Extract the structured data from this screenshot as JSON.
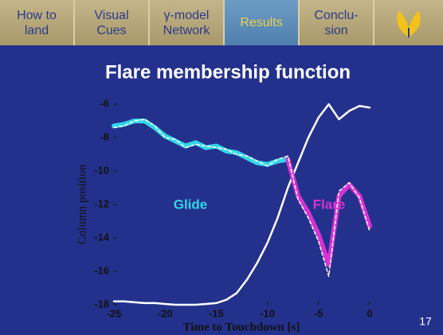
{
  "nav": {
    "tabs": [
      {
        "label": "How to land",
        "active": false
      },
      {
        "label": "Visual Cues",
        "active": false
      },
      {
        "label": "γ-model Network",
        "active": false
      },
      {
        "label": "Results",
        "active": true
      },
      {
        "label": "Conclu- sion",
        "active": false
      }
    ]
  },
  "slide_number": "17",
  "chart_data": {
    "type": "line",
    "title": "Flare membership function",
    "x_label": "Time to Touchdown [s]",
    "y_label": "Column position",
    "x": [
      -25,
      -24,
      -23,
      -22,
      -21,
      -20,
      -19,
      -18,
      -17,
      -16,
      -15,
      -14,
      -13,
      -12,
      -11,
      -10,
      -9,
      -8,
      -7,
      -6,
      -5,
      -4,
      -3,
      -2,
      -1,
      0
    ],
    "series": [
      {
        "color": "#ffffff",
        "width": 2.5,
        "style": "solid",
        "values": [
          -17.8,
          -17.8,
          -17.85,
          -17.9,
          -17.9,
          -17.95,
          -18,
          -18,
          -18,
          -17.95,
          -17.9,
          -17.7,
          -17.3,
          -16.5,
          -15.5,
          -14.3,
          -12.8,
          -11,
          -9.5,
          -8,
          -6.8,
          -6,
          -6.9,
          -6.4,
          -6.1,
          -6.2
        ]
      },
      {
        "name": "Glide",
        "color": "#33d6e8",
        "width": 6,
        "style": "solid",
        "values": [
          -7.3,
          -7.2,
          -7,
          -7,
          -7.4,
          -7.9,
          -8.2,
          -8.5,
          -8.3,
          -8.6,
          -8.5,
          -8.8,
          -8.9,
          -9.2,
          -9.5,
          -9.6,
          -9.4,
          -9.3,
          null,
          null,
          null,
          null,
          null,
          null,
          null,
          null
        ]
      },
      {
        "name": "Flare",
        "color": "#d633d6",
        "width": 6,
        "style": "solid",
        "values": [
          null,
          null,
          null,
          null,
          null,
          null,
          null,
          null,
          null,
          null,
          null,
          null,
          null,
          null,
          null,
          null,
          null,
          -9.3,
          -11.5,
          -12.5,
          -13.8,
          -15.6,
          -11.5,
          -10.8,
          -11.5,
          -13.3
        ]
      },
      {
        "color": "#ffffff",
        "width": 1.5,
        "style": "dashed",
        "values": [
          -7.4,
          -7.3,
          -7,
          -6.9,
          -7.3,
          -8,
          -8.1,
          -8.6,
          -8.4,
          -8.5,
          -8.6,
          -8.7,
          -9,
          -9.1,
          -9.4,
          -9.7,
          -9.3,
          -9.1,
          -11.7,
          -12.8,
          -14.2,
          -16.3,
          -11.2,
          -10.7,
          -11.6,
          -13.6
        ]
      }
    ],
    "xlim": [
      -25,
      0
    ],
    "xticks": [
      -25,
      -20,
      -15,
      -10,
      -5,
      0
    ],
    "ylim": [
      -18,
      -6
    ],
    "yticks": [
      -18,
      -16,
      -14,
      -12,
      -10,
      -8,
      -6
    ]
  }
}
